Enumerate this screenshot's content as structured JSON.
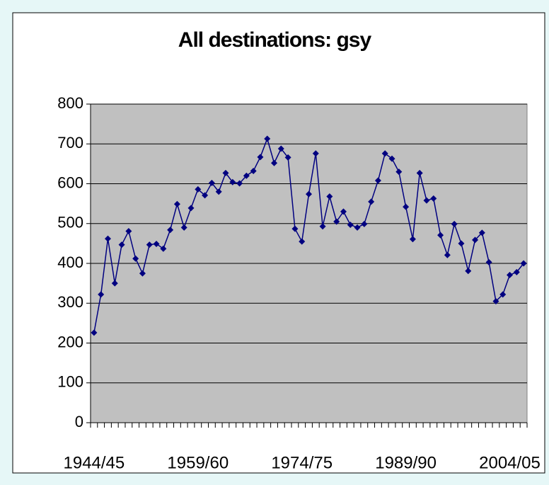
{
  "chart_data": {
    "type": "line",
    "title": "All destinations: gsy",
    "categories": [
      "1944/45",
      null,
      null,
      null,
      null,
      null,
      null,
      null,
      null,
      null,
      null,
      null,
      null,
      null,
      null,
      "1959/60",
      null,
      null,
      null,
      null,
      null,
      null,
      null,
      null,
      null,
      null,
      null,
      null,
      null,
      null,
      "1974/75",
      null,
      null,
      null,
      null,
      null,
      null,
      null,
      null,
      null,
      null,
      null,
      null,
      null,
      null,
      "1989/90",
      null,
      null,
      null,
      null,
      null,
      null,
      null,
      null,
      null,
      null,
      null,
      null,
      null,
      null,
      "2004/05",
      null,
      null
    ],
    "series": [
      {
        "name": "gsy",
        "color": "#000080",
        "values": [
          226,
          322,
          462,
          350,
          447,
          481,
          412,
          375,
          447,
          449,
          437,
          484,
          549,
          490,
          539,
          586,
          571,
          602,
          580,
          627,
          604,
          601,
          620,
          632,
          667,
          713,
          652,
          688,
          666,
          487,
          455,
          574,
          676,
          493,
          568,
          505,
          530,
          497,
          490,
          499,
          555,
          608,
          676,
          663,
          630,
          542,
          461,
          627,
          558,
          563,
          471,
          421,
          499,
          450,
          381,
          459,
          477,
          403,
          305,
          322,
          371,
          378,
          400
        ]
      }
    ],
    "ylim": [
      0,
      800
    ],
    "yticks": [
      0,
      100,
      200,
      300,
      400,
      500,
      600,
      700,
      800
    ],
    "grid": true,
    "plot_background": "#c0c0c0"
  }
}
